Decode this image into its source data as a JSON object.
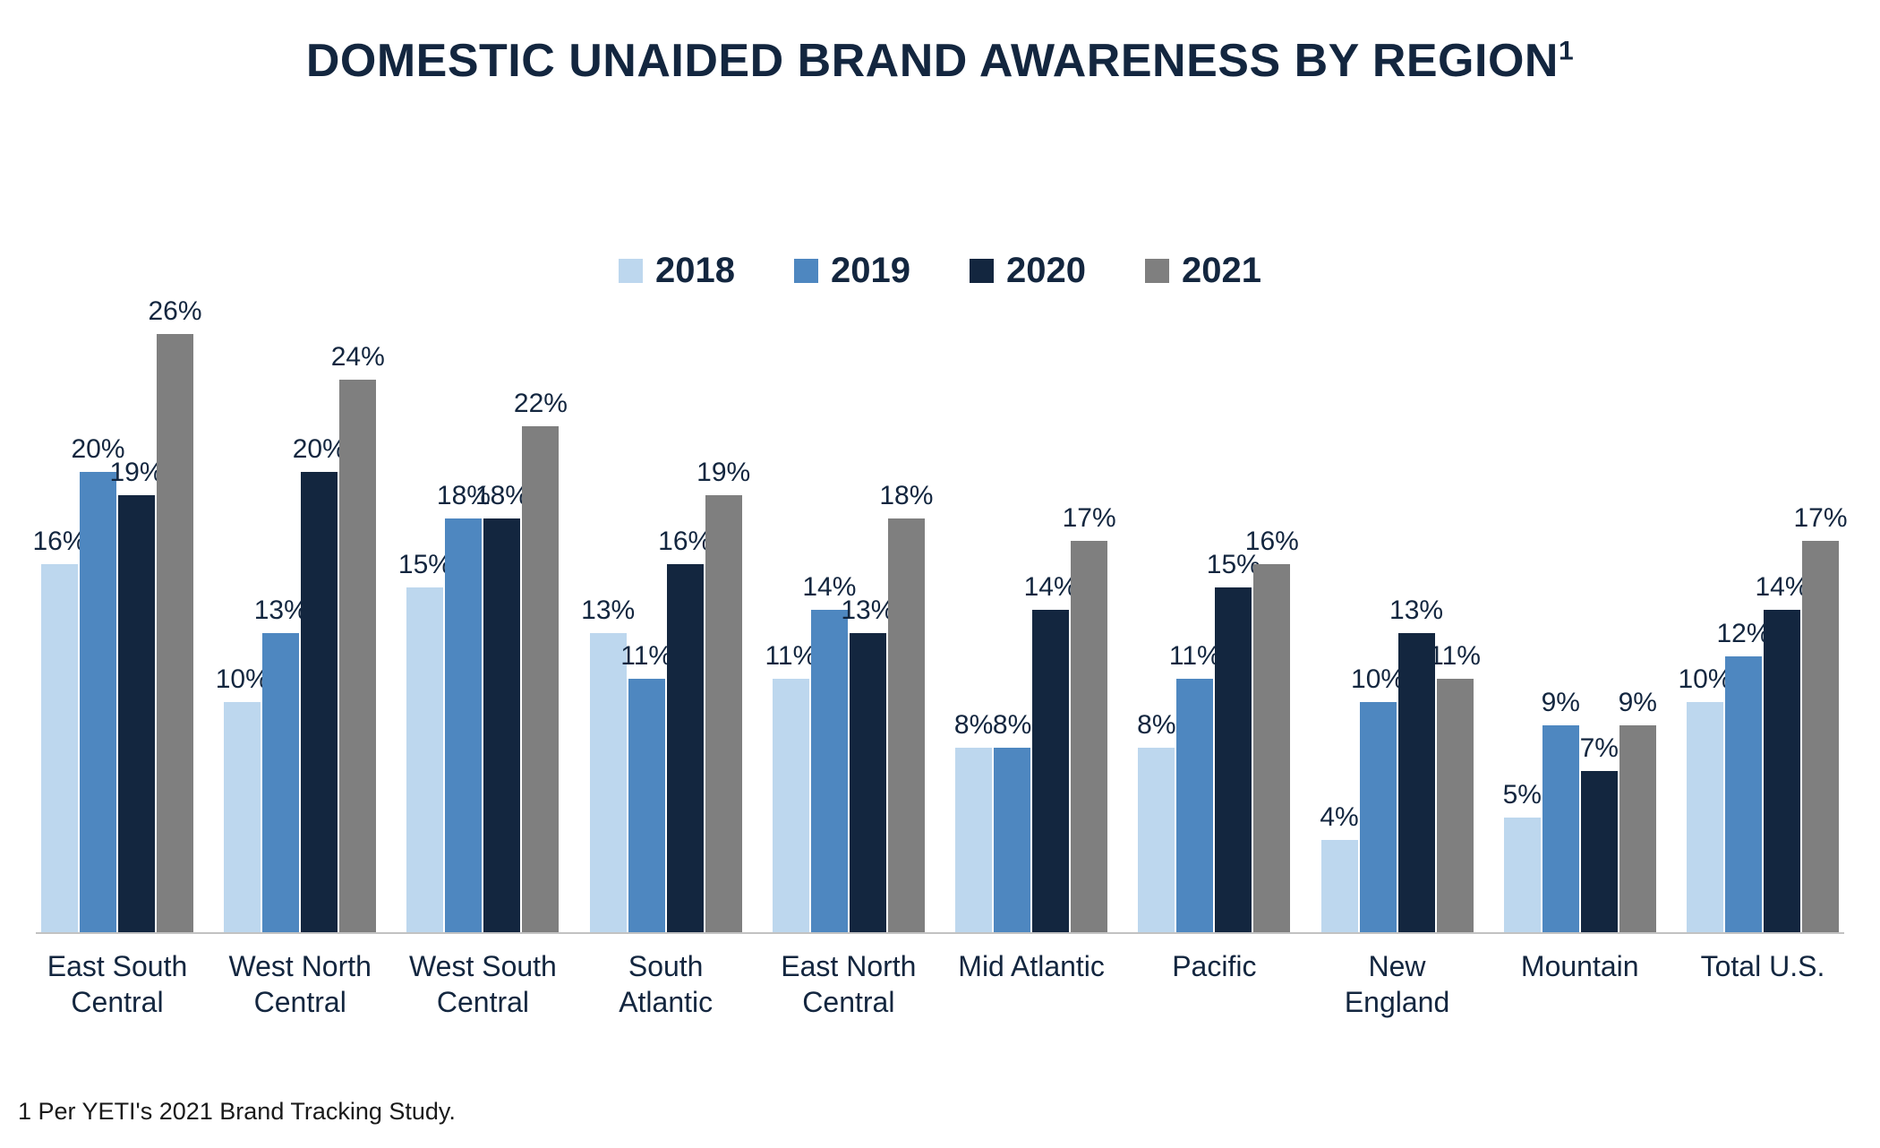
{
  "page": {
    "title": "DOMESTIC UNAIDED BRAND AWARENESS BY REGION",
    "title_superscript": "1",
    "footnote": "1 Per YETI's 2021 Brand Tracking Study."
  },
  "colors": {
    "text": "#13263F",
    "axis_line": "#c2c2c2"
  },
  "chart_data": {
    "type": "bar",
    "title": "DOMESTIC UNAIDED BRAND AWARENESS BY REGION",
    "xlabel": "",
    "ylabel": "",
    "ylim": [
      0,
      26
    ],
    "grid": false,
    "legend_position": "top-center",
    "value_label_suffix": "%",
    "categories": [
      "East South Central",
      "West North Central",
      "West South Central",
      "South Atlantic",
      "East North Central",
      "Mid Atlantic",
      "Pacific",
      "New England",
      "Mountain",
      "Total U.S."
    ],
    "series": [
      {
        "name": "2018",
        "color": "#BDD7EE",
        "values": [
          16,
          10,
          15,
          13,
          11,
          8,
          8,
          4,
          5,
          10
        ]
      },
      {
        "name": "2019",
        "color": "#4E87C0",
        "values": [
          20,
          13,
          18,
          11,
          14,
          8,
          11,
          10,
          9,
          12
        ]
      },
      {
        "name": "2020",
        "color": "#13263F",
        "values": [
          19,
          20,
          18,
          16,
          13,
          14,
          15,
          13,
          7,
          14
        ]
      },
      {
        "name": "2021",
        "color": "#7F7F7F",
        "values": [
          26,
          24,
          22,
          19,
          18,
          17,
          16,
          11,
          9,
          17
        ]
      }
    ],
    "footnote": "1 Per YETI's 2021 Brand Tracking Study."
  }
}
